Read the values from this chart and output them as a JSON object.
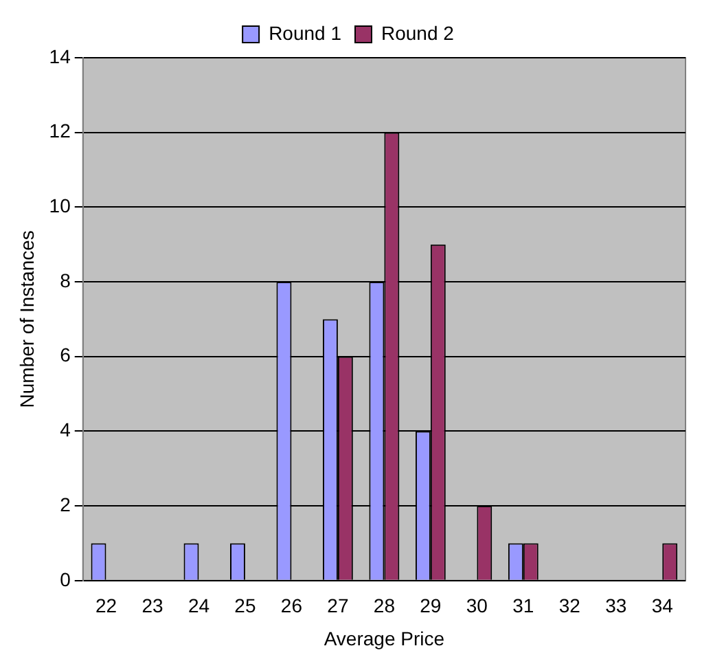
{
  "chart_data": {
    "type": "bar",
    "xlabel": "Average Price",
    "ylabel": "Number of Instances",
    "categories": [
      "22",
      "23",
      "24",
      "25",
      "26",
      "27",
      "28",
      "29",
      "30",
      "31",
      "32",
      "33",
      "34"
    ],
    "series": [
      {
        "name": "Round 1",
        "color": "#9999ff",
        "values": [
          1,
          0,
          1,
          1,
          8,
          7,
          8,
          4,
          0,
          1,
          0,
          0,
          0
        ]
      },
      {
        "name": "Round 2",
        "color": "#993366",
        "values": [
          0,
          0,
          0,
          0,
          0,
          6,
          12,
          9,
          2,
          1,
          0,
          0,
          1
        ]
      }
    ],
    "ylim": [
      0,
      14
    ],
    "yticks": [
      0,
      2,
      4,
      6,
      8,
      10,
      12,
      14
    ],
    "grid": "y",
    "legend": "top"
  }
}
